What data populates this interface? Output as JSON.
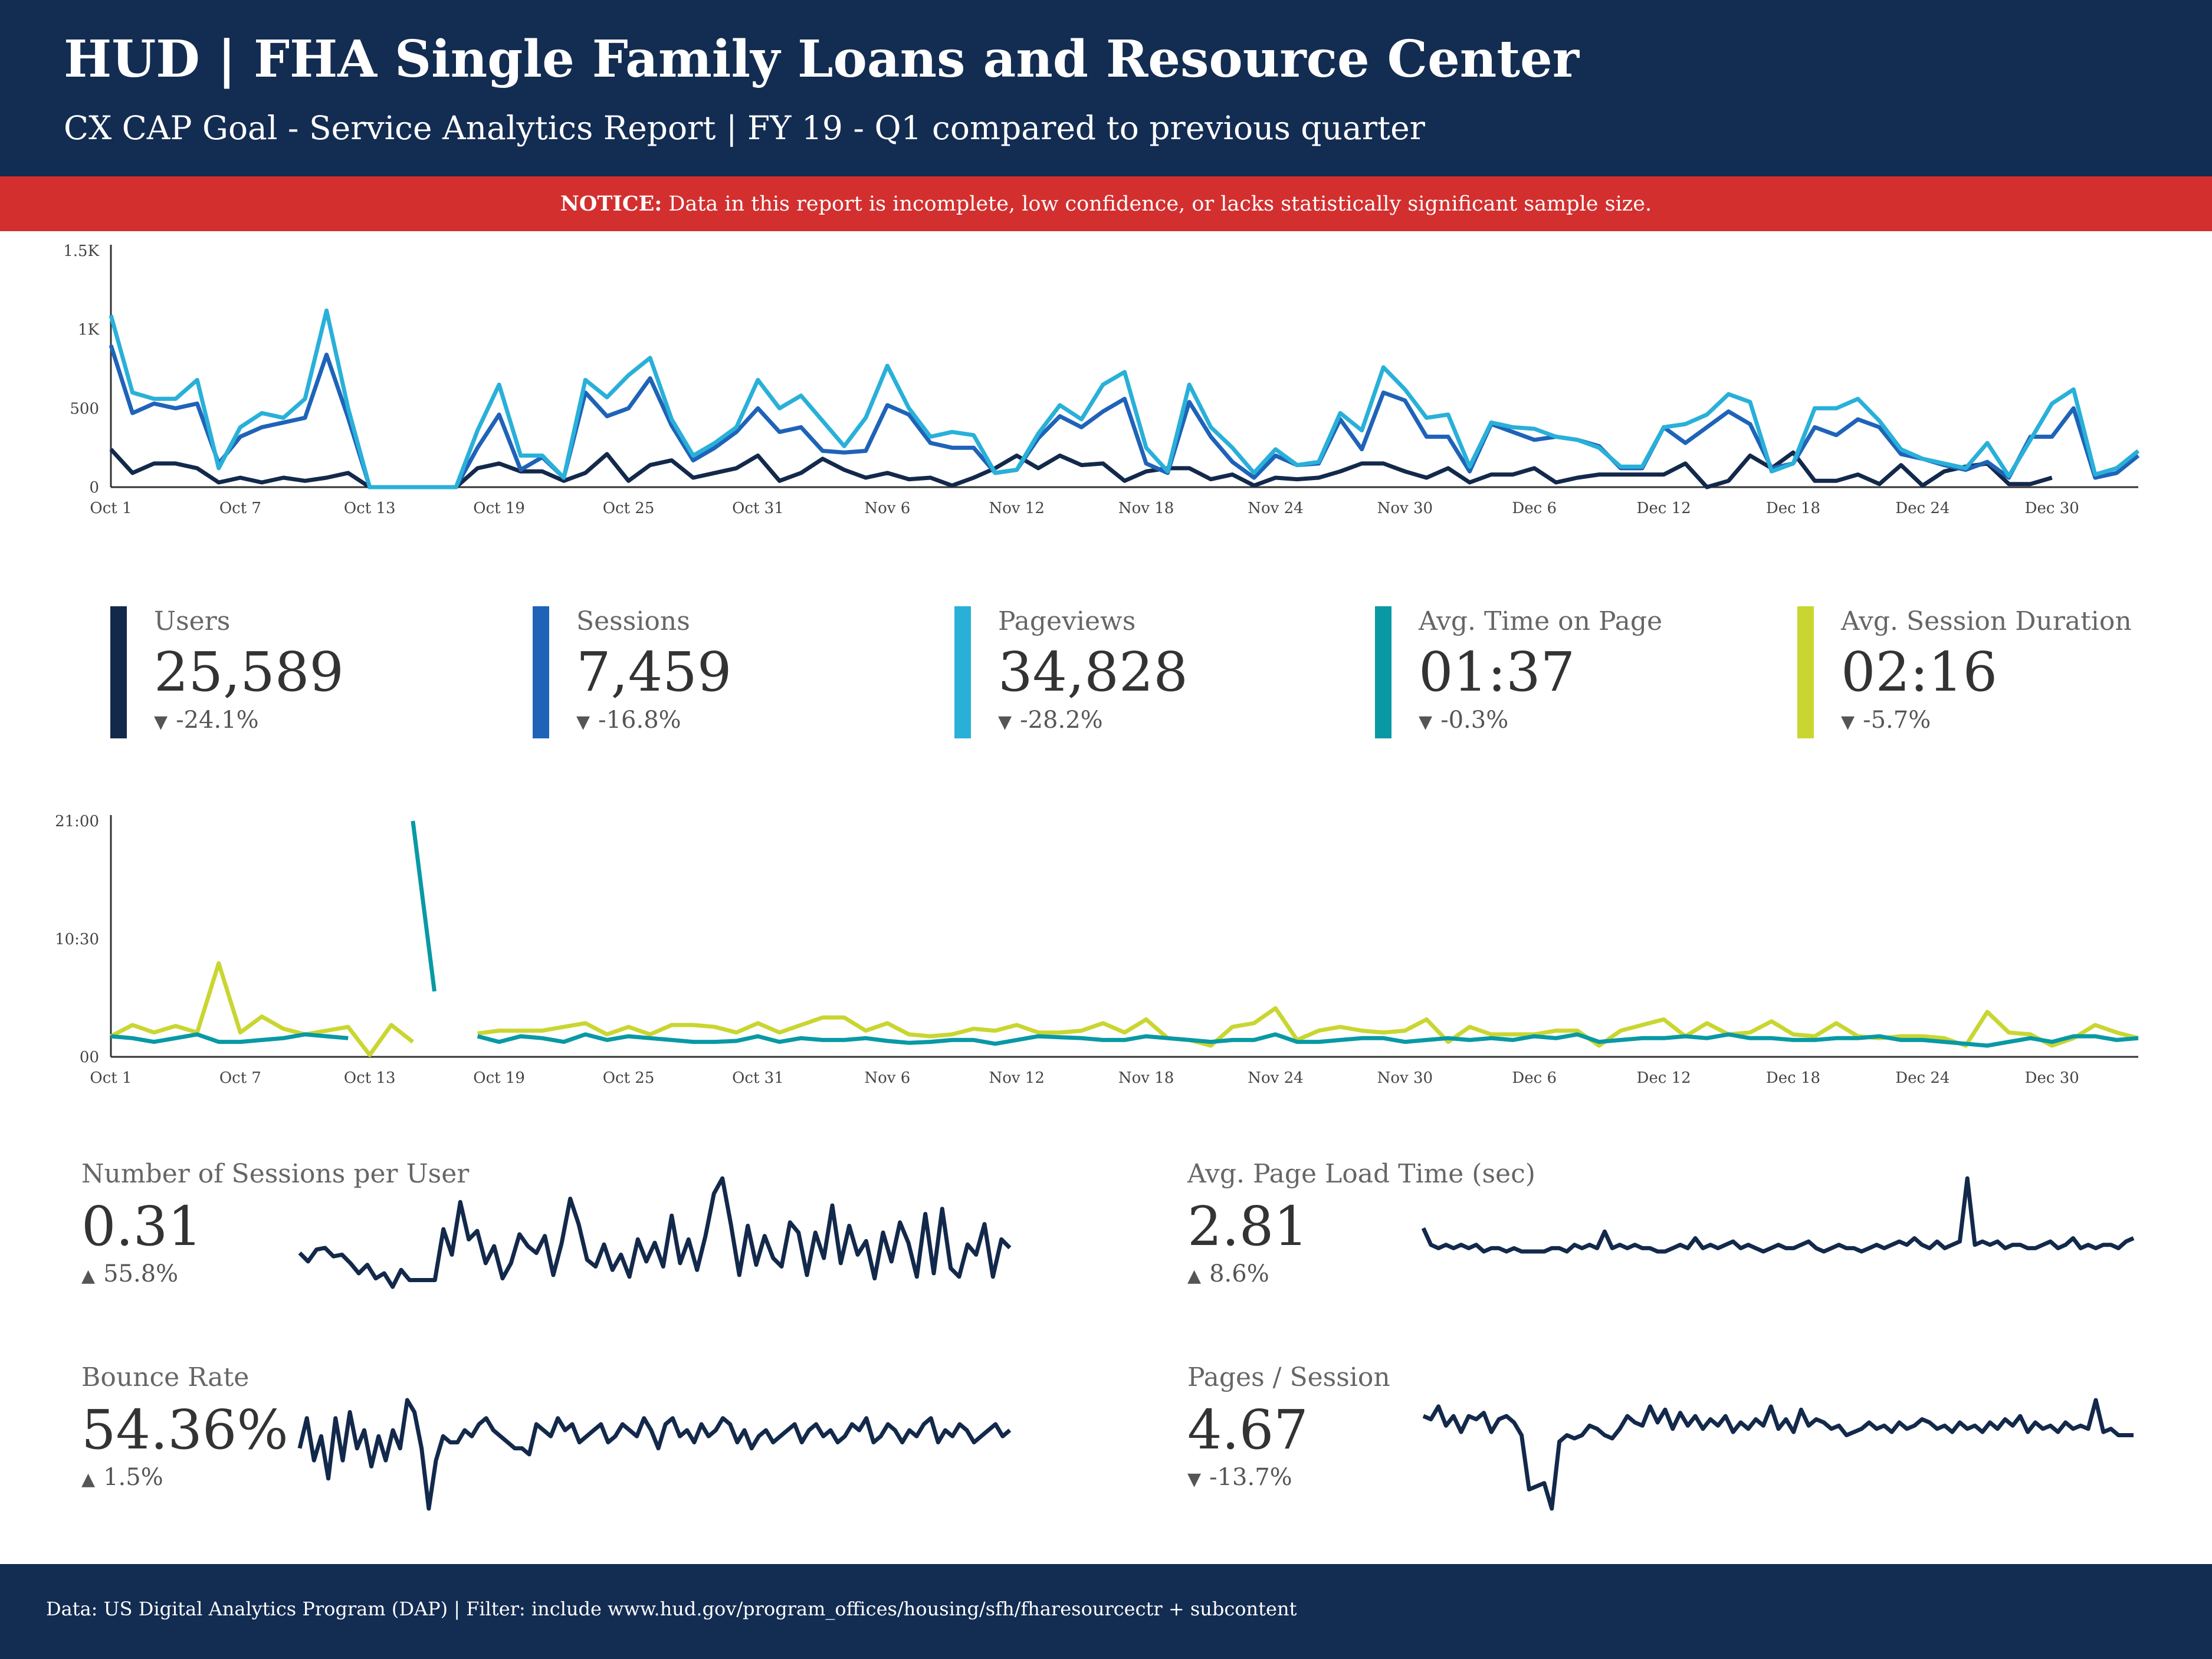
{
  "header": {
    "title": "HUD | FHA Single Family Loans and Resource Center",
    "subtitle": "CX CAP Goal - Service Analytics Report | FY 19 - Q1 compared to previous quarter"
  },
  "notice": {
    "label": "NOTICE:",
    "text": " Data in this report is incomplete, low confidence, or lacks statistically significant sample size."
  },
  "colors": {
    "header_bg": "#132c52",
    "notice_bg": "#d32f2f",
    "users": "#13294b",
    "sessions": "#1f63b8",
    "pageviews": "#29b0d9",
    "avg_time_on_page": "#0899a5",
    "avg_session_duration": "#c9d631"
  },
  "kpis": [
    {
      "label": "Users",
      "value": "25,589",
      "change": "-24.1%",
      "direction": "down",
      "color": "#13294b"
    },
    {
      "label": "Sessions",
      "value": "7,459",
      "change": "-16.8%",
      "direction": "down",
      "color": "#1f63b8"
    },
    {
      "label": "Pageviews",
      "value": "34,828",
      "change": "-28.2%",
      "direction": "down",
      "color": "#29b0d9"
    },
    {
      "label": "Avg. Time on Page",
      "value": "01:37",
      "change": "-0.3%",
      "direction": "down",
      "color": "#0899a5"
    },
    {
      "label": "Avg. Session Duration",
      "value": "02:16",
      "change": "-5.7%",
      "direction": "down",
      "color": "#c9d631"
    }
  ],
  "metrics": {
    "sessions_per_user": {
      "label": "Number of Sessions per User",
      "value": "0.31",
      "change": "55.8%",
      "direction": "up"
    },
    "bounce_rate": {
      "label": "Bounce Rate",
      "value": "54.36%",
      "change": "1.5%",
      "direction": "up"
    },
    "page_load_time": {
      "label": "Avg. Page Load Time (sec)",
      "value": "2.81",
      "change": "8.6%",
      "direction": "up"
    },
    "pages_per_session": {
      "label": "Pages / Session",
      "value": "4.67",
      "change": "-13.7%",
      "direction": "down"
    }
  },
  "chart_data": [
    {
      "type": "line",
      "x_tick_labels": [
        "Oct 1",
        "Oct 7",
        "Oct 13",
        "Oct 19",
        "Oct 25",
        "Oct 31",
        "Nov 6",
        "Nov 12",
        "Nov 18",
        "Nov 24",
        "Nov 30",
        "Dec 6",
        "Dec 12",
        "Dec 18",
        "Dec 24",
        "Dec 30"
      ],
      "y_tick_labels": [
        "0",
        "500",
        "1K",
        "1.5K"
      ],
      "ylim": [
        0,
        1500
      ],
      "grid": false,
      "series": [
        {
          "key": "users",
          "color": "#13294b",
          "values": [
            240,
            90,
            150,
            150,
            120,
            30,
            60,
            30,
            60,
            40,
            60,
            90,
            0,
            0,
            0,
            0,
            0,
            120,
            150,
            100,
            100,
            40,
            90,
            210,
            40,
            140,
            170,
            60,
            90,
            120,
            200,
            40,
            90,
            180,
            110,
            60,
            90,
            50,
            60,
            10,
            60,
            120,
            200,
            120,
            200,
            140,
            150,
            40,
            100,
            120,
            120,
            50,
            80,
            10,
            60,
            50,
            60,
            100,
            150,
            150,
            100,
            60,
            120,
            30,
            80,
            80,
            120,
            30,
            60,
            80,
            80,
            80,
            80,
            150,
            0,
            40,
            200,
            120,
            220,
            40,
            40,
            80,
            20,
            140,
            10,
            100,
            130,
            150,
            20,
            20,
            60
          ]
        },
        {
          "key": "sessions",
          "color": "#1f63b8",
          "values": [
            900,
            470,
            530,
            500,
            530,
            150,
            320,
            380,
            410,
            440,
            840,
            440,
            0,
            0,
            0,
            0,
            0,
            250,
            460,
            110,
            190,
            60,
            600,
            450,
            500,
            690,
            390,
            170,
            250,
            350,
            500,
            350,
            380,
            230,
            220,
            230,
            520,
            460,
            280,
            250,
            250,
            90,
            110,
            310,
            450,
            380,
            480,
            560,
            150,
            90,
            540,
            320,
            160,
            60,
            200,
            140,
            150,
            430,
            240,
            600,
            550,
            320,
            320,
            100,
            400,
            350,
            300,
            320,
            300,
            260,
            120,
            120,
            380,
            280,
            380,
            480,
            400,
            120,
            150,
            380,
            330,
            430,
            380,
            210,
            180,
            140,
            110,
            160,
            60,
            320,
            320,
            500,
            60,
            90,
            200
          ]
        },
        {
          "key": "pageviews",
          "color": "#29b0d9",
          "values": [
            1090,
            600,
            560,
            560,
            680,
            120,
            380,
            470,
            440,
            560,
            1120,
            500,
            0,
            0,
            0,
            0,
            0,
            360,
            650,
            200,
            200,
            60,
            680,
            570,
            710,
            820,
            430,
            200,
            280,
            380,
            680,
            500,
            580,
            420,
            260,
            440,
            770,
            500,
            320,
            350,
            330,
            90,
            110,
            340,
            520,
            430,
            650,
            730,
            250,
            100,
            650,
            380,
            250,
            90,
            240,
            140,
            160,
            470,
            360,
            760,
            620,
            440,
            460,
            130,
            410,
            380,
            370,
            320,
            300,
            250,
            130,
            130,
            380,
            400,
            460,
            590,
            540,
            100,
            150,
            500,
            500,
            560,
            420,
            240,
            180,
            150,
            120,
            280,
            70,
            300,
            530,
            620,
            80,
            120,
            230
          ]
        }
      ]
    },
    {
      "type": "line",
      "x_tick_labels": [
        "Oct 1",
        "Oct 7",
        "Oct 13",
        "Oct 19",
        "Oct 25",
        "Oct 31",
        "Nov 6",
        "Nov 12",
        "Nov 18",
        "Nov 24",
        "Nov 30",
        "Dec 6",
        "Dec 12",
        "Dec 18",
        "Dec 24",
        "Dec 30"
      ],
      "y_tick_labels": [
        "00",
        "10:30",
        "21:00"
      ],
      "ylim": [
        0,
        1260
      ],
      "grid": false,
      "series": [
        {
          "key": "avg_session_duration",
          "color": "#c9d631",
          "values": [
            110,
            170,
            130,
            165,
            130,
            500,
            130,
            215,
            150,
            120,
            140,
            160,
            10,
            170,
            80,
            null,
            null,
            125,
            140,
            140,
            140,
            160,
            180,
            120,
            160,
            120,
            170,
            170,
            160,
            130,
            180,
            130,
            170,
            210,
            210,
            140,
            180,
            120,
            110,
            120,
            150,
            140,
            170,
            130,
            130,
            140,
            180,
            130,
            200,
            100,
            90,
            60,
            160,
            180,
            260,
            90,
            140,
            160,
            140,
            130,
            140,
            200,
            80,
            160,
            120,
            120,
            120,
            140,
            140,
            60,
            140,
            170,
            200,
            110,
            180,
            120,
            130,
            190,
            120,
            110,
            180,
            110,
            100,
            110,
            110,
            100,
            60,
            240,
            130,
            120,
            60,
            100,
            170,
            130,
            100
          ]
        },
        {
          "key": "avg_time_on_page",
          "color": "#0899a5",
          "values": [
            110,
            100,
            80,
            100,
            120,
            80,
            80,
            90,
            100,
            120,
            110,
            100,
            null,
            null,
            1260,
            350,
            null,
            110,
            80,
            110,
            100,
            80,
            120,
            90,
            110,
            100,
            90,
            80,
            80,
            85,
            110,
            80,
            100,
            90,
            90,
            100,
            85,
            75,
            80,
            90,
            90,
            70,
            90,
            110,
            105,
            100,
            90,
            90,
            110,
            100,
            90,
            80,
            90,
            90,
            120,
            80,
            80,
            90,
            100,
            100,
            80,
            90,
            100,
            90,
            100,
            90,
            110,
            100,
            120,
            80,
            90,
            100,
            100,
            110,
            100,
            120,
            100,
            100,
            90,
            90,
            100,
            100,
            110,
            90,
            90,
            80,
            70,
            60,
            80,
            100,
            80,
            110,
            110,
            90,
            100
          ]
        }
      ]
    },
    {
      "type": "line",
      "name": "Number of Sessions per User",
      "values": [
        0.5,
        0.45,
        0.52,
        0.53,
        0.48,
        0.49,
        0.44,
        0.38,
        0.43,
        0.35,
        0.38,
        0.3,
        0.4,
        0.34,
        0.34,
        0.34,
        0.34,
        0.64,
        0.49,
        0.8,
        0.58,
        0.63,
        0.44,
        0.54,
        0.35,
        0.44,
        0.61,
        0.54,
        0.5,
        0.6,
        0.37,
        0.56,
        0.82,
        0.67,
        0.46,
        0.42,
        0.55,
        0.4,
        0.49,
        0.36,
        0.58,
        0.45,
        0.56,
        0.42,
        0.72,
        0.44,
        0.58,
        0.4,
        0.6,
        0.85,
        0.94,
        0.67,
        0.37,
        0.66,
        0.43,
        0.6,
        0.47,
        0.42,
        0.68,
        0.62,
        0.37,
        0.62,
        0.47,
        0.78,
        0.44,
        0.66,
        0.49,
        0.57,
        0.35,
        0.62,
        0.45,
        0.68,
        0.56,
        0.36,
        0.73,
        0.38,
        0.76,
        0.41,
        0.36,
        0.55,
        0.49,
        0.67,
        0.36,
        0.58,
        0.53
      ]
    },
    {
      "type": "line",
      "name": "Bounce Rate",
      "values": [
        0.5,
        0.55,
        0.48,
        0.52,
        0.45,
        0.55,
        0.48,
        0.56,
        0.5,
        0.53,
        0.47,
        0.52,
        0.48,
        0.53,
        0.5,
        0.58,
        0.56,
        0.5,
        0.4,
        0.48,
        0.52,
        0.51,
        0.51,
        0.53,
        0.52,
        0.54,
        0.55,
        0.53,
        0.52,
        0.51,
        0.5,
        0.5,
        0.49,
        0.54,
        0.53,
        0.52,
        0.55,
        0.53,
        0.54,
        0.51,
        0.52,
        0.53,
        0.54,
        0.51,
        0.52,
        0.54,
        0.53,
        0.52,
        0.55,
        0.53,
        0.5,
        0.54,
        0.55,
        0.52,
        0.53,
        0.51,
        0.54,
        0.52,
        0.53,
        0.55,
        0.54,
        0.51,
        0.53,
        0.5,
        0.52,
        0.53,
        0.51,
        0.52,
        0.53,
        0.54,
        0.51,
        0.53,
        0.54,
        0.52,
        0.53,
        0.51,
        0.52,
        0.54,
        0.53,
        0.55,
        0.51,
        0.52,
        0.54,
        0.53,
        0.51,
        0.53,
        0.52,
        0.54,
        0.55,
        0.51,
        0.53,
        0.52,
        0.54,
        0.53,
        0.51,
        0.52,
        0.53,
        0.54,
        0.52,
        0.53
      ]
    },
    {
      "type": "line",
      "name": "Avg. Page Load Time (sec)",
      "values": [
        2.9,
        2.4,
        2.3,
        2.4,
        2.3,
        2.4,
        2.3,
        2.4,
        2.2,
        2.3,
        2.3,
        2.2,
        2.3,
        2.2,
        2.2,
        2.2,
        2.2,
        2.3,
        2.3,
        2.2,
        2.4,
        2.3,
        2.4,
        2.3,
        2.8,
        2.3,
        2.4,
        2.3,
        2.4,
        2.3,
        2.3,
        2.2,
        2.2,
        2.3,
        2.4,
        2.3,
        2.6,
        2.3,
        2.4,
        2.3,
        2.4,
        2.5,
        2.3,
        2.4,
        2.3,
        2.2,
        2.3,
        2.4,
        2.3,
        2.3,
        2.4,
        2.5,
        2.3,
        2.2,
        2.3,
        2.4,
        2.3,
        2.3,
        2.2,
        2.3,
        2.4,
        2.3,
        2.4,
        2.5,
        2.4,
        2.6,
        2.4,
        2.3,
        2.5,
        2.3,
        2.4,
        2.5,
        4.4,
        2.4,
        2.5,
        2.4,
        2.5,
        2.3,
        2.4,
        2.4,
        2.3,
        2.3,
        2.4,
        2.5,
        2.3,
        2.4,
        2.6,
        2.3,
        2.4,
        2.3,
        2.4,
        2.4,
        2.3,
        2.5,
        2.6
      ]
    },
    {
      "type": "line",
      "name": "Pages / Session",
      "values": [
        5.4,
        5.3,
        5.7,
        5.1,
        5.4,
        4.9,
        5.4,
        5.3,
        5.5,
        4.9,
        5.3,
        5.4,
        5.2,
        4.8,
        3.1,
        3.2,
        3.3,
        2.5,
        4.6,
        4.8,
        4.7,
        4.8,
        5.1,
        5.0,
        4.8,
        4.7,
        5.0,
        5.4,
        5.2,
        5.1,
        5.7,
        5.2,
        5.6,
        5.0,
        5.5,
        5.1,
        5.4,
        5.0,
        5.3,
        5.1,
        5.4,
        4.9,
        5.2,
        5.0,
        5.3,
        5.1,
        5.7,
        5.0,
        5.3,
        4.9,
        5.6,
        5.1,
        5.3,
        5.2,
        5.0,
        5.1,
        4.8,
        4.9,
        5.0,
        5.2,
        5.0,
        5.1,
        4.9,
        5.2,
        5.0,
        5.1,
        5.3,
        5.2,
        5.0,
        5.1,
        4.9,
        5.2,
        5.0,
        5.1,
        4.9,
        5.2,
        5.0,
        5.3,
        5.1,
        5.4,
        4.9,
        5.2,
        5.0,
        5.1,
        4.9,
        5.2,
        5.0,
        5.1,
        5.0,
        5.9,
        4.9,
        5.0,
        4.8,
        4.8,
        4.8
      ]
    }
  ],
  "footer": {
    "source": "Data: US Digital Analytics Program (DAP) | Filter: include www.hud.gov/program_offices/housing/sfh/fharesourcectr + subcontent"
  }
}
